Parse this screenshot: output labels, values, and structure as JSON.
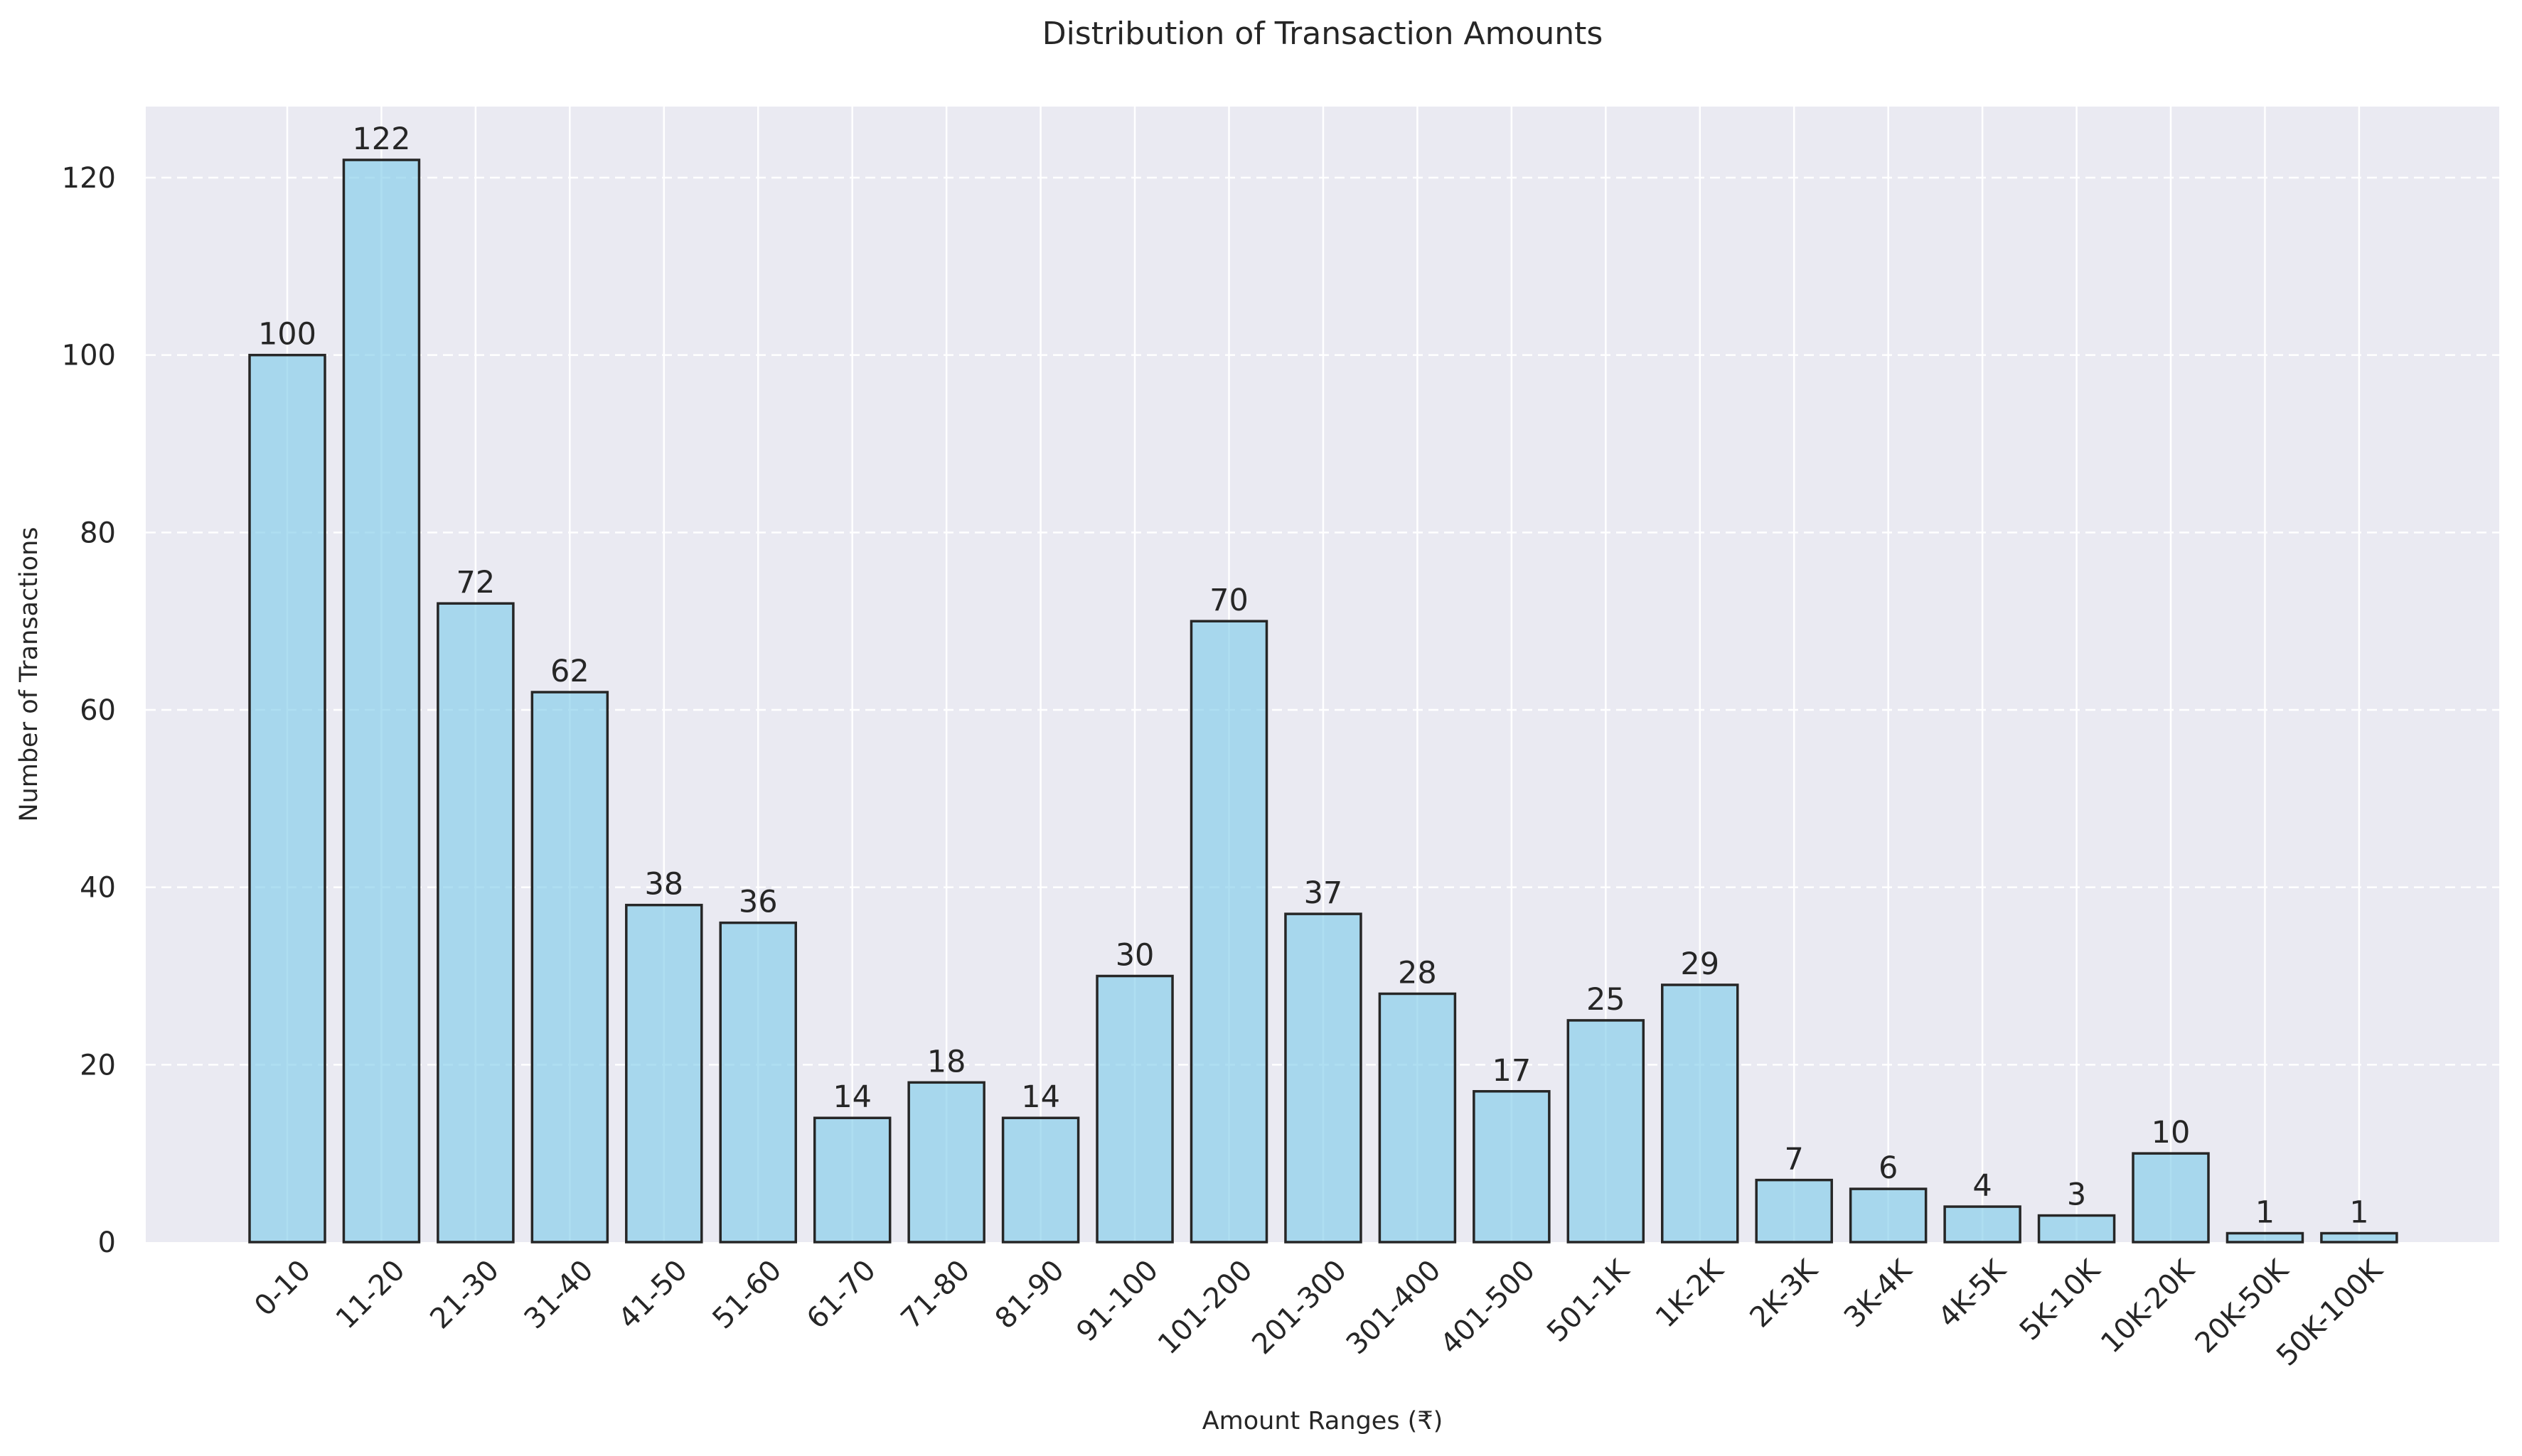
{
  "chart_data": {
    "type": "bar",
    "title": "Distribution of Transaction Amounts",
    "xlabel": "Amount Ranges (₹)",
    "ylabel": "Number of Transactions",
    "categories": [
      "0-10",
      "11-20",
      "21-30",
      "31-40",
      "41-50",
      "51-60",
      "61-70",
      "71-80",
      "81-90",
      "91-100",
      "101-200",
      "201-300",
      "301-400",
      "401-500",
      "501-1K",
      "1K-2K",
      "2K-3K",
      "3K-4K",
      "4K-5K",
      "5K-10K",
      "10K-20K",
      "20K-50K",
      "50K-100K"
    ],
    "values": [
      100,
      122,
      72,
      62,
      38,
      36,
      14,
      18,
      14,
      30,
      70,
      37,
      28,
      17,
      25,
      29,
      7,
      6,
      4,
      3,
      10,
      1,
      1
    ],
    "ylim": [
      0,
      128
    ],
    "yticks": [
      0,
      20,
      40,
      60,
      80,
      100,
      120
    ],
    "grid": true,
    "legend": "none",
    "colors": {
      "bar_fill": "#87ceeb",
      "bar_stroke": "#262626",
      "plot_background": "#eaeaf2",
      "grid": "#ffffff",
      "text": "#262626"
    }
  }
}
